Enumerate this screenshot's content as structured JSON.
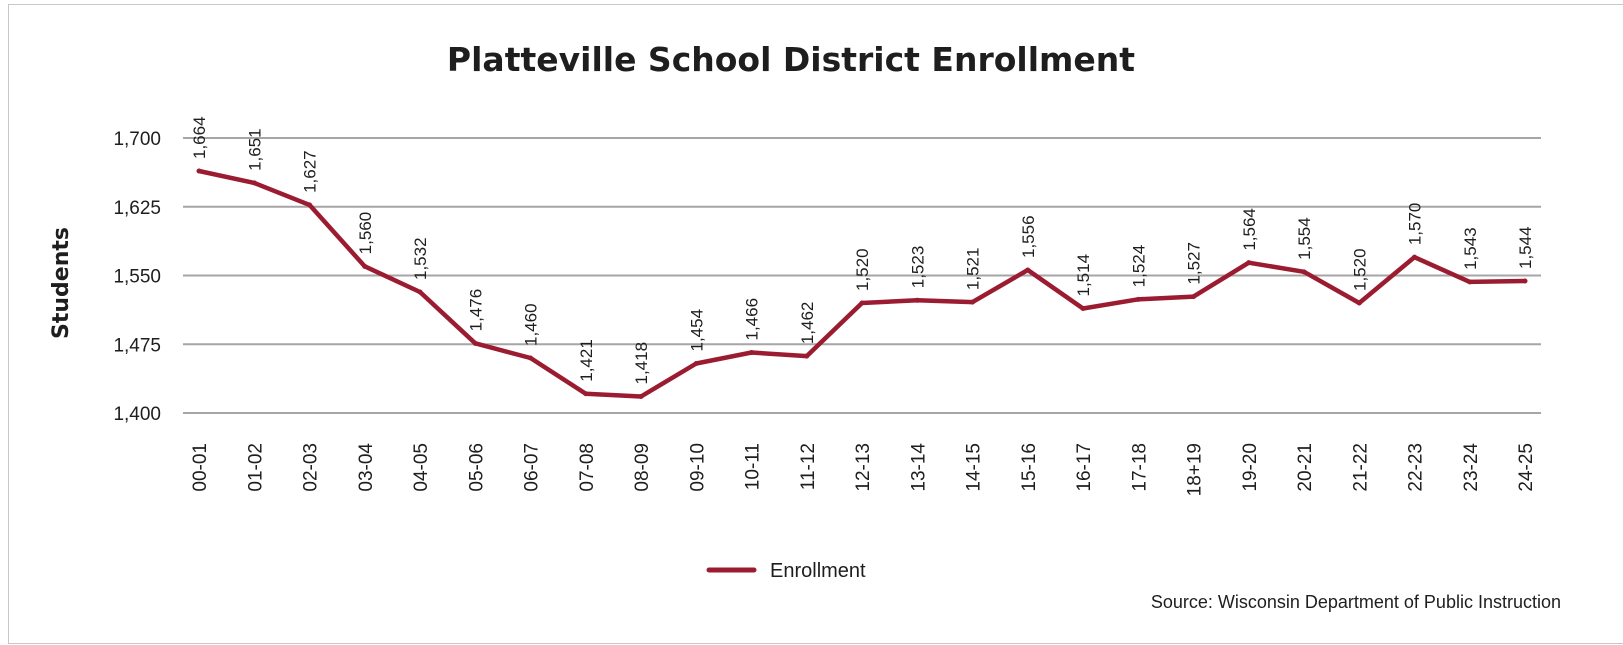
{
  "chart_data": {
    "type": "line",
    "title": "Platteville School District Enrollment",
    "ylabel": "Students",
    "xlabel": "",
    "ylim": [
      1400,
      1700
    ],
    "yticks": [
      "1,400",
      "1,475",
      "1,550",
      "1,625",
      "1,700"
    ],
    "ytick_values": [
      1400,
      1475,
      1550,
      1625,
      1700
    ],
    "grid": "horizontal",
    "legend_position": "bottom",
    "categories": [
      "00-01",
      "01-02",
      "02-03",
      "03-04",
      "04-05",
      "05-06",
      "06-07",
      "07-08",
      "08-09",
      "09-10",
      "10-11",
      "11-12",
      "12-13",
      "13-14",
      "14-15",
      "15-16",
      "16-17",
      "17-18",
      "18+19",
      "19-20",
      "20-21",
      "21-22",
      "22-23",
      "23-24",
      "24-25"
    ],
    "series": [
      {
        "name": "Enrollment",
        "color": "#9b1c31",
        "values": [
          1664,
          1651,
          1627,
          1560,
          1532,
          1476,
          1460,
          1421,
          1418,
          1454,
          1466,
          1462,
          1520,
          1523,
          1521,
          1556,
          1514,
          1524,
          1527,
          1564,
          1554,
          1520,
          1570,
          1543,
          1544
        ],
        "labels": [
          "1,664",
          "1,651",
          "1,627",
          "1,560",
          "1,532",
          "1,476",
          "1,460",
          "1,421",
          "1,418",
          "1,454",
          "1,466",
          "1,462",
          "1,520",
          "1,523",
          "1,521",
          "1,556",
          "1,514",
          "1,524",
          "1,527",
          "1,564",
          "1,554",
          "1,520",
          "1,570",
          "1,543",
          "1,544"
        ]
      }
    ],
    "source": "Source: Wisconsin Department of Public Instruction",
    "gridline_color": "#a6a6a6"
  }
}
